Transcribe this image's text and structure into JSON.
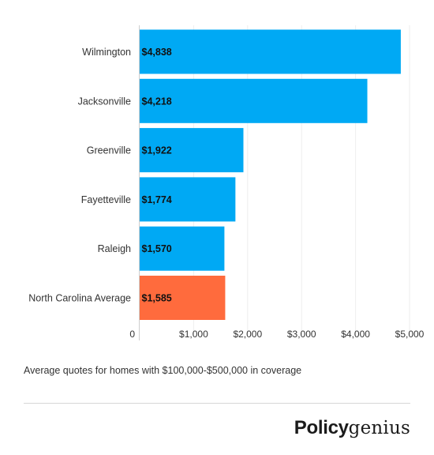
{
  "chart_data": {
    "type": "bar",
    "orientation": "horizontal",
    "categories": [
      "Wilmington",
      "Jacksonville",
      "Greenville",
      "Fayetteville",
      "Raleigh",
      "North Carolina Average"
    ],
    "values": [
      4838,
      4218,
      1922,
      1774,
      1570,
      1585
    ],
    "value_labels": [
      "$4,838",
      "$4,218",
      "$1,922",
      "$1,774",
      "$1,570",
      "$1,585"
    ],
    "colors": [
      "#00a9f4",
      "#00a9f4",
      "#00a9f4",
      "#00a9f4",
      "#00a9f4",
      "#ff6b3d"
    ],
    "xlim": [
      0,
      5200
    ],
    "x_ticks": [
      0,
      1000,
      2000,
      3000,
      4000,
      5000
    ],
    "x_tick_labels": [
      "0",
      "$1,000",
      "$2,000",
      "$3,000",
      "$4,000",
      "$5,000"
    ],
    "grid": true,
    "title": "",
    "xlabel": "",
    "ylabel": ""
  },
  "caption": "Average quotes for homes with $100,000-$500,000 in coverage",
  "logo": {
    "bold": "Policy",
    "light": "genius"
  }
}
